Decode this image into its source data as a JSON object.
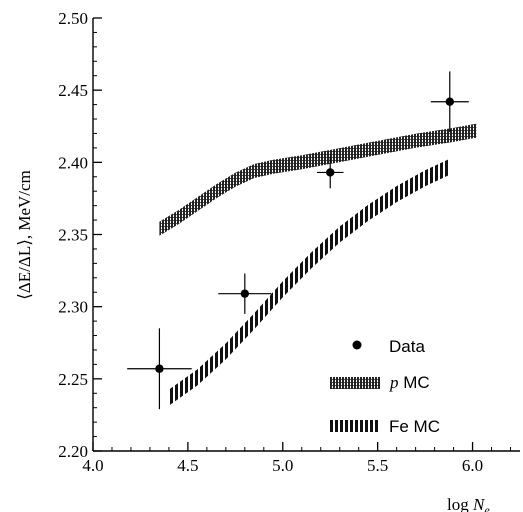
{
  "chart_data": {
    "type": "scatter",
    "xlabel": "log N_e",
    "xlabel_parts": {
      "main": "log ",
      "var": "N",
      "sub": "e"
    },
    "ylabel": "⟨ΔE/ΔL⟩, MeV/cm",
    "xlim": [
      4.0,
      6.25
    ],
    "ylim": [
      2.2,
      2.5
    ],
    "x_ticks": [
      4.0,
      4.5,
      5.0,
      5.5,
      6.0
    ],
    "x_tick_labels": [
      "4.0",
      "4.5",
      "5.0",
      "5.5",
      "6.0"
    ],
    "y_ticks": [
      2.2,
      2.25,
      2.3,
      2.35,
      2.4,
      2.45,
      2.5
    ],
    "y_tick_labels": [
      "2.20",
      "2.25",
      "2.30",
      "2.35",
      "2.40",
      "2.45",
      "2.50"
    ],
    "grid": false,
    "legend_position": "bottom-right",
    "series": [
      {
        "name": "Data",
        "kind": "points-with-errors",
        "points": [
          {
            "x": 4.35,
            "y": 2.257,
            "xerr": 0.17,
            "yerr": 0.028
          },
          {
            "x": 4.8,
            "y": 2.309,
            "xerr": 0.14,
            "yerr": 0.014
          },
          {
            "x": 5.25,
            "y": 2.393,
            "xerr": 0.07,
            "yerr": 0.011
          },
          {
            "x": 5.88,
            "y": 2.442,
            "xerr": 0.1,
            "yerr": 0.021
          }
        ]
      },
      {
        "name": "p MC",
        "name_parts": {
          "var": "p",
          "rest": " MC"
        },
        "kind": "band",
        "x": [
          4.35,
          4.45,
          4.55,
          4.65,
          4.75,
          4.85,
          4.95,
          5.1,
          5.3,
          5.5,
          5.7,
          5.9,
          6.02
        ],
        "y": [
          2.354,
          2.362,
          2.371,
          2.38,
          2.388,
          2.394,
          2.397,
          2.4,
          2.405,
          2.41,
          2.415,
          2.419,
          2.422
        ]
      },
      {
        "name": "Fe MC",
        "kind": "band",
        "x": [
          4.4,
          4.55,
          4.7,
          4.85,
          5.0,
          5.15,
          5.3,
          5.45,
          5.6,
          5.75,
          5.88
        ],
        "y": [
          2.237,
          2.251,
          2.269,
          2.29,
          2.312,
          2.332,
          2.35,
          2.365,
          2.378,
          2.389,
          2.397
        ]
      }
    ]
  }
}
